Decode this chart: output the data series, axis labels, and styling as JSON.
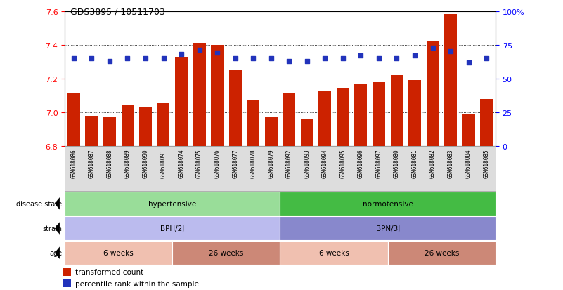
{
  "title": "GDS3895 / 10511703",
  "samples": [
    "GSM618086",
    "GSM618087",
    "GSM618088",
    "GSM618089",
    "GSM618090",
    "GSM618091",
    "GSM618074",
    "GSM618075",
    "GSM618076",
    "GSM618077",
    "GSM618078",
    "GSM618079",
    "GSM618092",
    "GSM618093",
    "GSM618094",
    "GSM618095",
    "GSM618096",
    "GSM618097",
    "GSM618080",
    "GSM618081",
    "GSM618082",
    "GSM618083",
    "GSM618084",
    "GSM618085"
  ],
  "transformed_count": [
    7.11,
    6.98,
    6.97,
    7.04,
    7.03,
    7.06,
    7.33,
    7.41,
    7.4,
    7.25,
    7.07,
    6.97,
    7.11,
    6.96,
    7.13,
    7.14,
    7.17,
    7.18,
    7.22,
    7.19,
    7.42,
    7.58,
    6.99,
    7.08
  ],
  "percentile_rank": [
    65,
    65,
    63,
    65,
    65,
    65,
    68,
    71,
    69,
    65,
    65,
    65,
    63,
    63,
    65,
    65,
    67,
    65,
    65,
    67,
    73,
    70,
    62,
    65
  ],
  "bar_color": "#cc2200",
  "dot_color": "#2233bb",
  "ylim_left": [
    6.8,
    7.6
  ],
  "yticks_left": [
    6.8,
    7.0,
    7.2,
    7.4,
    7.6
  ],
  "ylim_right": [
    0,
    100
  ],
  "yticks_right": [
    0,
    25,
    50,
    75,
    100
  ],
  "ytick_labels_right": [
    "0",
    "25",
    "50",
    "75",
    "100%"
  ],
  "disease_state_groups": [
    {
      "label": "hypertensive",
      "start": 0,
      "end": 12,
      "color": "#99dd99"
    },
    {
      "label": "normotensive",
      "start": 12,
      "end": 24,
      "color": "#44bb44"
    }
  ],
  "strain_groups": [
    {
      "label": "BPH/2J",
      "start": 0,
      "end": 12,
      "color": "#bbbbee"
    },
    {
      "label": "BPN/3J",
      "start": 12,
      "end": 24,
      "color": "#8888cc"
    }
  ],
  "age_groups": [
    {
      "label": "6 weeks",
      "start": 0,
      "end": 6,
      "color": "#f0c0b0"
    },
    {
      "label": "26 weeks",
      "start": 6,
      "end": 12,
      "color": "#cc8877"
    },
    {
      "label": "6 weeks",
      "start": 12,
      "end": 18,
      "color": "#f0c0b0"
    },
    {
      "label": "26 weeks",
      "start": 18,
      "end": 24,
      "color": "#cc8877"
    }
  ],
  "legend_bar_label": "transformed count",
  "legend_dot_label": "percentile rank within the sample",
  "background_color": "#ffffff",
  "xticklabel_bg": "#dddddd"
}
